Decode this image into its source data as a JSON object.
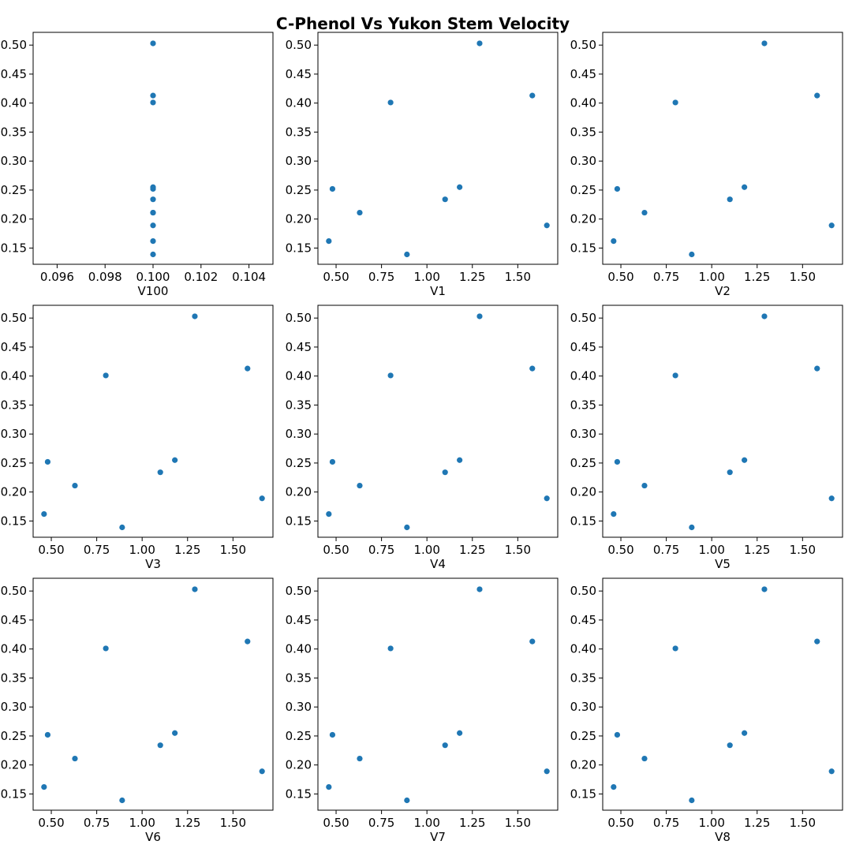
{
  "figure": {
    "title": "C-Phenol Vs Yukon Stem Velocity"
  },
  "colors": {
    "point": "#1f77b4",
    "axis": "#000000",
    "background": "#ffffff"
  },
  "chart_data": [
    {
      "type": "scatter",
      "xlabel": "V100",
      "ylabel": "",
      "xlim": [
        0.095,
        0.105
      ],
      "ylim": [
        0.122,
        0.522
      ],
      "xticks": [
        "0.096",
        "0.098",
        "0.100",
        "0.102",
        "0.104"
      ],
      "yticks": [
        "0.15",
        "0.20",
        "0.25",
        "0.30",
        "0.35",
        "0.40",
        "0.45",
        "0.50"
      ],
      "grid": false,
      "x": [
        0.1,
        0.1,
        0.1,
        0.1,
        0.1,
        0.1,
        0.1,
        0.1,
        0.1,
        0.1,
        0.1
      ],
      "y": [
        0.503,
        0.413,
        0.401,
        0.255,
        0.252,
        0.234,
        0.211,
        0.189,
        0.162,
        0.139,
        0.211
      ]
    },
    {
      "type": "scatter",
      "xlabel": "V1",
      "ylabel": "",
      "xlim": [
        0.4,
        1.72
      ],
      "ylim": [
        0.122,
        0.522
      ],
      "xticks": [
        "0.50",
        "0.75",
        "1.00",
        "1.25",
        "1.50"
      ],
      "yticks": [
        "0.15",
        "0.20",
        "0.25",
        "0.30",
        "0.35",
        "0.40",
        "0.45",
        "0.50"
      ],
      "grid": false,
      "x": [
        1.29,
        1.58,
        0.8,
        1.18,
        0.48,
        1.1,
        0.63,
        1.66,
        0.46,
        0.89
      ],
      "y": [
        0.503,
        0.413,
        0.401,
        0.255,
        0.252,
        0.234,
        0.211,
        0.189,
        0.162,
        0.139
      ]
    },
    {
      "type": "scatter",
      "xlabel": "V2",
      "ylabel": "",
      "xlim": [
        0.4,
        1.72
      ],
      "ylim": [
        0.122,
        0.522
      ],
      "xticks": [
        "0.50",
        "0.75",
        "1.00",
        "1.25",
        "1.50"
      ],
      "yticks": [
        "0.15",
        "0.20",
        "0.25",
        "0.30",
        "0.35",
        "0.40",
        "0.45",
        "0.50"
      ],
      "grid": false,
      "x": [
        1.29,
        1.58,
        0.8,
        1.18,
        0.48,
        1.1,
        0.63,
        1.66,
        0.46,
        0.89
      ],
      "y": [
        0.503,
        0.413,
        0.401,
        0.255,
        0.252,
        0.234,
        0.211,
        0.189,
        0.162,
        0.139
      ]
    },
    {
      "type": "scatter",
      "xlabel": "V3",
      "ylabel": "",
      "xlim": [
        0.4,
        1.72
      ],
      "ylim": [
        0.122,
        0.522
      ],
      "xticks": [
        "0.50",
        "0.75",
        "1.00",
        "1.25",
        "1.50"
      ],
      "yticks": [
        "0.15",
        "0.20",
        "0.25",
        "0.30",
        "0.35",
        "0.40",
        "0.45",
        "0.50"
      ],
      "grid": false,
      "x": [
        1.29,
        1.58,
        0.8,
        1.18,
        0.48,
        1.1,
        0.63,
        1.66,
        0.46,
        0.89
      ],
      "y": [
        0.503,
        0.413,
        0.401,
        0.255,
        0.252,
        0.234,
        0.211,
        0.189,
        0.162,
        0.139
      ]
    },
    {
      "type": "scatter",
      "xlabel": "V4",
      "ylabel": "",
      "xlim": [
        0.4,
        1.72
      ],
      "ylim": [
        0.122,
        0.522
      ],
      "xticks": [
        "0.50",
        "0.75",
        "1.00",
        "1.25",
        "1.50"
      ],
      "yticks": [
        "0.15",
        "0.20",
        "0.25",
        "0.30",
        "0.35",
        "0.40",
        "0.45",
        "0.50"
      ],
      "grid": false,
      "x": [
        1.29,
        1.58,
        0.8,
        1.18,
        0.48,
        1.1,
        0.63,
        1.66,
        0.46,
        0.89
      ],
      "y": [
        0.503,
        0.413,
        0.401,
        0.255,
        0.252,
        0.234,
        0.211,
        0.189,
        0.162,
        0.139
      ]
    },
    {
      "type": "scatter",
      "xlabel": "V5",
      "ylabel": "",
      "xlim": [
        0.4,
        1.72
      ],
      "ylim": [
        0.122,
        0.522
      ],
      "xticks": [
        "0.50",
        "0.75",
        "1.00",
        "1.25",
        "1.50"
      ],
      "yticks": [
        "0.15",
        "0.20",
        "0.25",
        "0.30",
        "0.35",
        "0.40",
        "0.45",
        "0.50"
      ],
      "grid": false,
      "x": [
        1.29,
        1.58,
        0.8,
        1.18,
        0.48,
        1.1,
        0.63,
        1.66,
        0.46,
        0.89
      ],
      "y": [
        0.503,
        0.413,
        0.401,
        0.255,
        0.252,
        0.234,
        0.211,
        0.189,
        0.162,
        0.139
      ]
    },
    {
      "type": "scatter",
      "xlabel": "V6",
      "ylabel": "",
      "xlim": [
        0.4,
        1.72
      ],
      "ylim": [
        0.122,
        0.522
      ],
      "xticks": [
        "0.50",
        "0.75",
        "1.00",
        "1.25",
        "1.50"
      ],
      "yticks": [
        "0.15",
        "0.20",
        "0.25",
        "0.30",
        "0.35",
        "0.40",
        "0.45",
        "0.50"
      ],
      "grid": false,
      "x": [
        1.29,
        1.58,
        0.8,
        1.18,
        0.48,
        1.1,
        0.63,
        1.66,
        0.46,
        0.89
      ],
      "y": [
        0.503,
        0.413,
        0.401,
        0.255,
        0.252,
        0.234,
        0.211,
        0.189,
        0.162,
        0.139
      ]
    },
    {
      "type": "scatter",
      "xlabel": "V7",
      "ylabel": "",
      "xlim": [
        0.4,
        1.72
      ],
      "ylim": [
        0.122,
        0.522
      ],
      "xticks": [
        "0.50",
        "0.75",
        "1.00",
        "1.25",
        "1.50"
      ],
      "yticks": [
        "0.15",
        "0.20",
        "0.25",
        "0.30",
        "0.35",
        "0.40",
        "0.45",
        "0.50"
      ],
      "grid": false,
      "x": [
        1.29,
        1.58,
        0.8,
        1.18,
        0.48,
        1.1,
        0.63,
        1.66,
        0.46,
        0.89
      ],
      "y": [
        0.503,
        0.413,
        0.401,
        0.255,
        0.252,
        0.234,
        0.211,
        0.189,
        0.162,
        0.139
      ]
    },
    {
      "type": "scatter",
      "xlabel": "V8",
      "ylabel": "",
      "xlim": [
        0.4,
        1.72
      ],
      "ylim": [
        0.122,
        0.522
      ],
      "xticks": [
        "0.50",
        "0.75",
        "1.00",
        "1.25",
        "1.50"
      ],
      "yticks": [
        "0.15",
        "0.20",
        "0.25",
        "0.30",
        "0.35",
        "0.40",
        "0.45",
        "0.50"
      ],
      "grid": false,
      "x": [
        1.29,
        1.58,
        0.8,
        1.18,
        0.48,
        1.1,
        0.63,
        1.66,
        0.46,
        0.89
      ],
      "y": [
        0.503,
        0.413,
        0.401,
        0.255,
        0.252,
        0.234,
        0.211,
        0.189,
        0.162,
        0.139
      ]
    }
  ]
}
